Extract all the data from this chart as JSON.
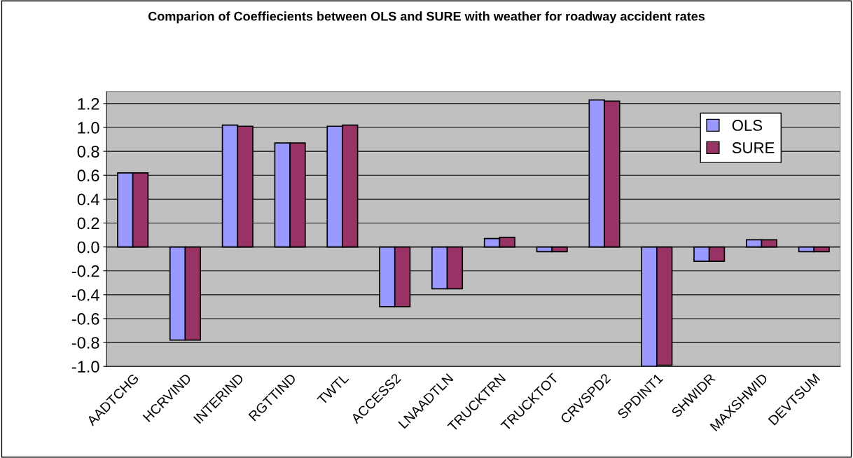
{
  "chart_data": {
    "type": "bar",
    "title": "Comparion of Coeffiecients between OLS and SURE with weather for roadway accident rates",
    "categories": [
      "AADTCHG",
      "HCRVIND",
      "INTERIND",
      "RGTTIND",
      "TWTL",
      "ACCESS2",
      "LNAADTLN",
      "TRUCKTRN",
      "TRUCKTOT",
      "CRVSPD2",
      "SPDINT1",
      "SHWIDR",
      "MAXSHWID",
      "DEVTSUM"
    ],
    "series": [
      {
        "name": "OLS",
        "color": "#9999ff",
        "values": [
          0.62,
          -0.78,
          1.02,
          0.87,
          1.01,
          -0.5,
          -0.35,
          0.07,
          -0.04,
          1.23,
          -1.0,
          -0.12,
          0.06,
          -0.04
        ]
      },
      {
        "name": "SURE",
        "color": "#993366",
        "values": [
          0.62,
          -0.78,
          1.01,
          0.87,
          1.02,
          -0.5,
          -0.35,
          0.08,
          -0.04,
          1.22,
          -0.99,
          -0.12,
          0.06,
          -0.04
        ]
      }
    ],
    "ylim": [
      -1.0,
      1.3
    ],
    "yticks": [
      {
        "value": -1.0,
        "label": "-1.0"
      },
      {
        "value": -0.8,
        "label": "-0.8"
      },
      {
        "value": -0.6,
        "label": "-0.6"
      },
      {
        "value": -0.4,
        "label": "-0.4"
      },
      {
        "value": -0.2,
        "label": "-0.2"
      },
      {
        "value": 0.0,
        "label": "0.0"
      },
      {
        "value": 0.2,
        "label": "0.2"
      },
      {
        "value": 0.4,
        "label": "0.4"
      },
      {
        "value": 0.6,
        "label": "0.6"
      },
      {
        "value": 0.8,
        "label": "0.8"
      },
      {
        "value": 1.0,
        "label": "1.0"
      },
      {
        "value": 1.2,
        "label": "1.2"
      }
    ],
    "grid": "y",
    "legend": "top right"
  }
}
